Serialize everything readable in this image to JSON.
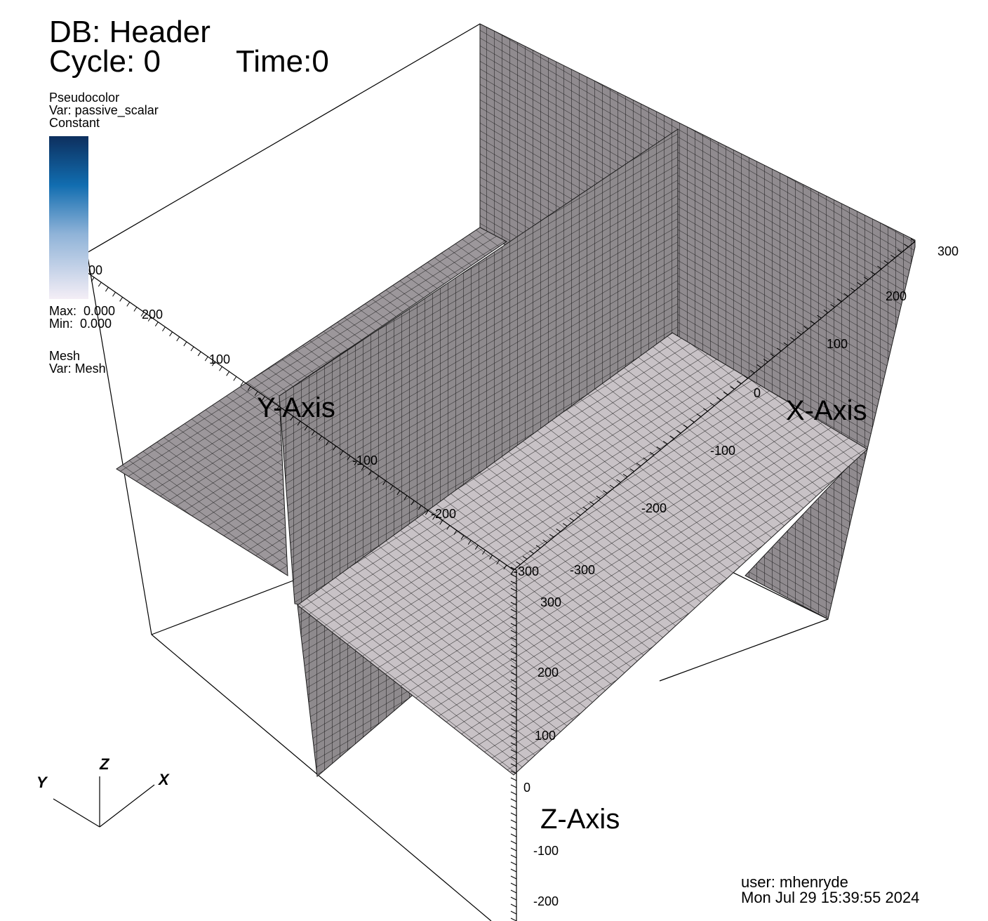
{
  "header": {
    "db_label": "DB: Header",
    "cycle_label": "Cycle: 0",
    "time_label": "Time:0"
  },
  "pseudocolor_legend": {
    "plot_type": "Pseudocolor",
    "variable": "Var: passive_scalar",
    "mode": "Constant",
    "colorbar_tick": "00",
    "max_label": "Max:  0.000",
    "min_label": "Min:  0.000",
    "colors": [
      "#0d2f5e",
      "#116db0",
      "#8fb3d8",
      "#f4eef6"
    ]
  },
  "mesh_legend": {
    "plot_type": "Mesh",
    "variable": "Var: Mesh"
  },
  "axes": {
    "x_title": "X-Axis",
    "y_title": "Y-Axis",
    "z_title": "Z-Axis",
    "x_ticks": [
      "300",
      "200",
      "100",
      "0",
      "-100",
      "-200",
      "-300"
    ],
    "y_ticks": [
      "200",
      "100",
      "-100",
      "-200",
      "-300"
    ],
    "z_ticks": [
      "300",
      "200",
      "100",
      "0",
      "-100",
      "-200"
    ]
  },
  "triad": {
    "x": "X",
    "y": "Y",
    "z": "Z"
  },
  "user_info": {
    "user": "user: mhenryde",
    "timestamp": "Mon Jul 29 15:39:55 2024"
  },
  "colors": {
    "mesh_dark_plane": "#8e8a8d",
    "mesh_light_plane": "#c8c2c6",
    "grid_line": "#1a1a1a",
    "bbox_line": "#000000"
  }
}
